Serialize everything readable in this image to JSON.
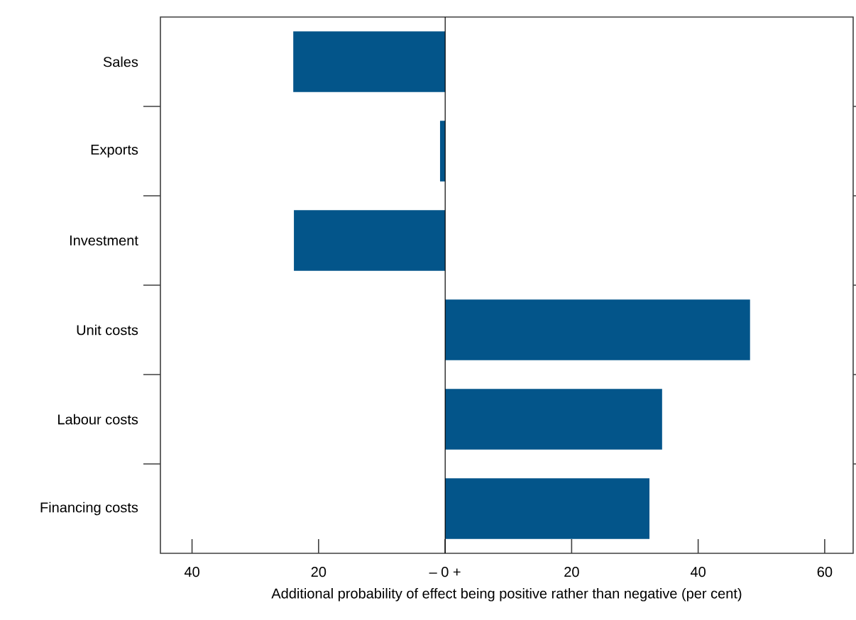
{
  "chart_data": {
    "type": "bar",
    "orientation": "horizontal",
    "xlabel": "Additional probability of effect being positive rather than negative (per cent)",
    "categories": [
      "Sales",
      "Exports",
      "Investment",
      "Unit costs",
      "Labour costs",
      "Financing costs"
    ],
    "values": [
      -24,
      -0.8,
      -23.9,
      48.2,
      34.3,
      32.3
    ],
    "color": "#03558a",
    "xlim": [
      -45,
      64.5
    ],
    "xticks": [
      {
        "value": -40,
        "label": "40"
      },
      {
        "value": -20,
        "label": "20"
      },
      {
        "value": 0,
        "label": "– 0 +"
      },
      {
        "value": 20,
        "label": "20"
      },
      {
        "value": 40,
        "label": "40"
      },
      {
        "value": 60,
        "label": "60"
      }
    ]
  }
}
